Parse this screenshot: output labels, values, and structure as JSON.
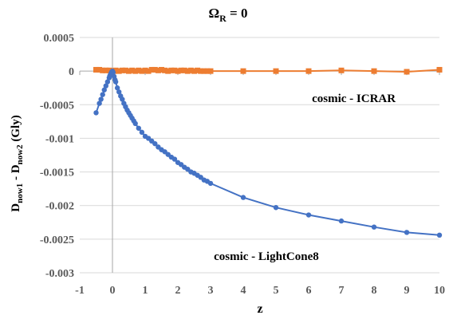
{
  "chart_data": {
    "type": "scatter",
    "title": "Ω",
    "title_sub": "R",
    "title_tail": " = 0",
    "xlabel": "z",
    "ylabel": {
      "p1": "D",
      "p1_sub": "now1",
      "p2": " - D",
      "p2_sub": "now2",
      "p3": "  (Gly)"
    },
    "xlim": [
      -1,
      10
    ],
    "ylim": [
      -0.003,
      0.0005
    ],
    "x_ticks": [
      -1,
      0,
      1,
      2,
      3,
      4,
      5,
      6,
      7,
      8,
      9,
      10
    ],
    "x_tick_labels": [
      "-1",
      "0",
      "1",
      "2",
      "3",
      "4",
      "5",
      "6",
      "7",
      "8",
      "9",
      "10"
    ],
    "y_ticks": [
      0.0005,
      0,
      -0.0005,
      -0.001,
      -0.0015,
      -0.002,
      -0.0025,
      -0.003
    ],
    "y_tick_labels": [
      "0.0005",
      "0",
      "-0.0005",
      "-0.001",
      "-0.0015",
      "-0.002",
      "-0.0025",
      "-0.003"
    ],
    "grid": "horizontal",
    "annotations": [
      {
        "text": "cosmic - ICRAR",
        "x": 6.1,
        "y": -0.0004
      },
      {
        "text": "cosmic - LightCone8",
        "x": 3.1,
        "y": -0.00275
      }
    ],
    "series": [
      {
        "color": "#ED7D31",
        "marker": "square",
        "x": [
          -0.5,
          -0.4,
          -0.3,
          -0.2,
          -0.1,
          -0.05,
          0,
          0.05,
          0.1,
          0.2,
          0.3,
          0.4,
          0.5,
          0.6,
          0.7,
          0.8,
          0.9,
          1.0,
          1.1,
          1.2,
          1.3,
          1.4,
          1.5,
          1.6,
          1.7,
          1.8,
          1.9,
          2.0,
          2.1,
          2.2,
          2.3,
          2.4,
          2.5,
          2.6,
          2.7,
          2.8,
          2.9,
          3.0,
          4,
          5,
          6,
          7,
          8,
          9,
          10
        ],
        "y": [
          2e-05,
          2e-05,
          1e-05,
          1e-05,
          1e-05,
          0,
          0,
          0,
          1e-05,
          0,
          1e-05,
          1e-05,
          0,
          1e-05,
          0,
          1e-05,
          0,
          1e-05,
          0,
          2e-05,
          2e-05,
          1e-05,
          2e-05,
          1e-05,
          0,
          1e-05,
          1e-05,
          0,
          1e-05,
          1e-05,
          0,
          1e-05,
          0,
          1e-05,
          0,
          0,
          0,
          0,
          0,
          0,
          0,
          1e-05,
          0,
          -1e-05,
          2e-05
        ]
      },
      {
        "color": "#4472C4",
        "marker": "circle",
        "x": [
          -0.5,
          -0.4,
          -0.35,
          -0.3,
          -0.25,
          -0.2,
          -0.15,
          -0.1,
          -0.08,
          -0.06,
          -0.04,
          -0.02,
          0,
          0.02,
          0.05,
          0.08,
          0.1,
          0.15,
          0.2,
          0.25,
          0.3,
          0.35,
          0.4,
          0.45,
          0.5,
          0.55,
          0.6,
          0.65,
          0.7,
          0.8,
          0.9,
          1.0,
          1.1,
          1.2,
          1.3,
          1.4,
          1.5,
          1.6,
          1.7,
          1.8,
          1.9,
          2.0,
          2.1,
          2.2,
          2.3,
          2.4,
          2.5,
          2.6,
          2.7,
          2.8,
          2.9,
          3.0,
          4,
          5,
          6,
          7,
          8,
          9,
          10
        ],
        "y": [
          -0.00062,
          -0.00048,
          -0.00042,
          -0.00035,
          -0.00028,
          -0.00022,
          -0.00016,
          -0.0001,
          -7e-05,
          -5e-05,
          -3e-05,
          -1e-05,
          0,
          -2e-05,
          -8e-05,
          -0.00013,
          -0.00016,
          -0.00025,
          -0.00031,
          -0.00037,
          -0.00042,
          -0.00048,
          -0.00053,
          -0.00058,
          -0.00062,
          -0.00066,
          -0.0007,
          -0.00074,
          -0.00078,
          -0.00085,
          -0.00091,
          -0.00097,
          -0.001,
          -0.00104,
          -0.00108,
          -0.00113,
          -0.00117,
          -0.0012,
          -0.00124,
          -0.00128,
          -0.00131,
          -0.00136,
          -0.00139,
          -0.00143,
          -0.00146,
          -0.0015,
          -0.00152,
          -0.00155,
          -0.00158,
          -0.00162,
          -0.00164,
          -0.00167,
          -0.00188,
          -0.00203,
          -0.00214,
          -0.00223,
          -0.00232,
          -0.0024,
          -0.00244
        ]
      }
    ]
  }
}
